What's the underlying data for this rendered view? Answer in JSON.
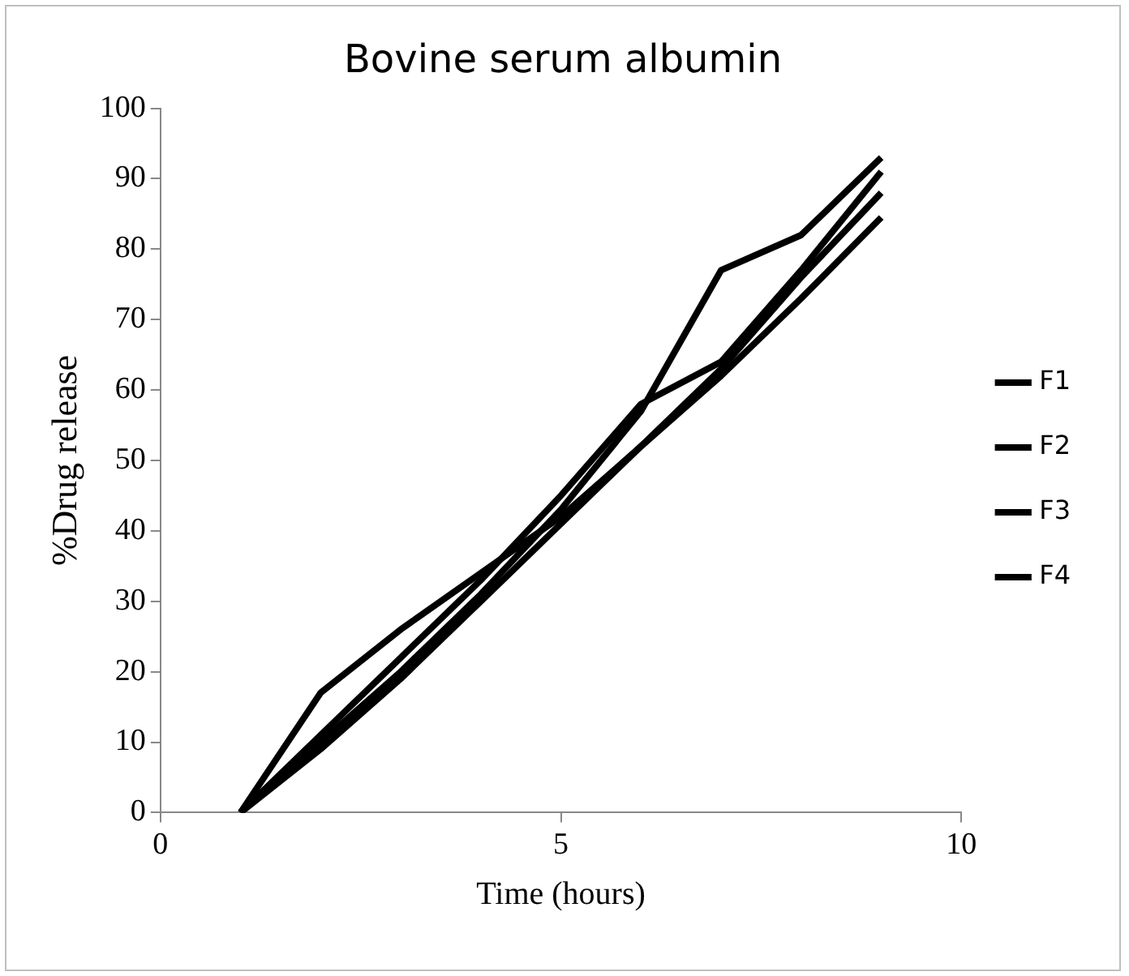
{
  "chart_data": {
    "type": "line",
    "title": "Bovine serum albumin",
    "xlabel": "Time (hours)",
    "ylabel": "%Drug release",
    "x": [
      1,
      2,
      3,
      4,
      5,
      6,
      7,
      8,
      9
    ],
    "series": [
      {
        "name": "F1",
        "color": "#000000",
        "values": [
          0,
          17,
          26,
          34,
          42,
          52,
          62,
          73,
          84.5
        ]
      },
      {
        "name": "F2",
        "color": "#000000",
        "values": [
          0,
          10,
          20,
          31,
          43,
          57,
          77,
          82,
          93
        ]
      },
      {
        "name": "F3",
        "color": "#000000",
        "values": [
          0,
          9,
          19,
          30,
          41,
          52,
          63,
          76,
          88
        ]
      },
      {
        "name": "F4",
        "color": "#000000",
        "values": [
          0,
          11,
          22,
          33,
          45,
          58,
          64,
          77,
          91
        ]
      }
    ],
    "xlim": [
      0,
      10
    ],
    "xticks": [
      0,
      5,
      10
    ],
    "ylim": [
      0,
      100
    ],
    "yticks": [
      0,
      10,
      20,
      30,
      40,
      50,
      60,
      70,
      80,
      90,
      100
    ],
    "grid": false,
    "legend": "right",
    "marker": "none",
    "line_style": "solid"
  }
}
